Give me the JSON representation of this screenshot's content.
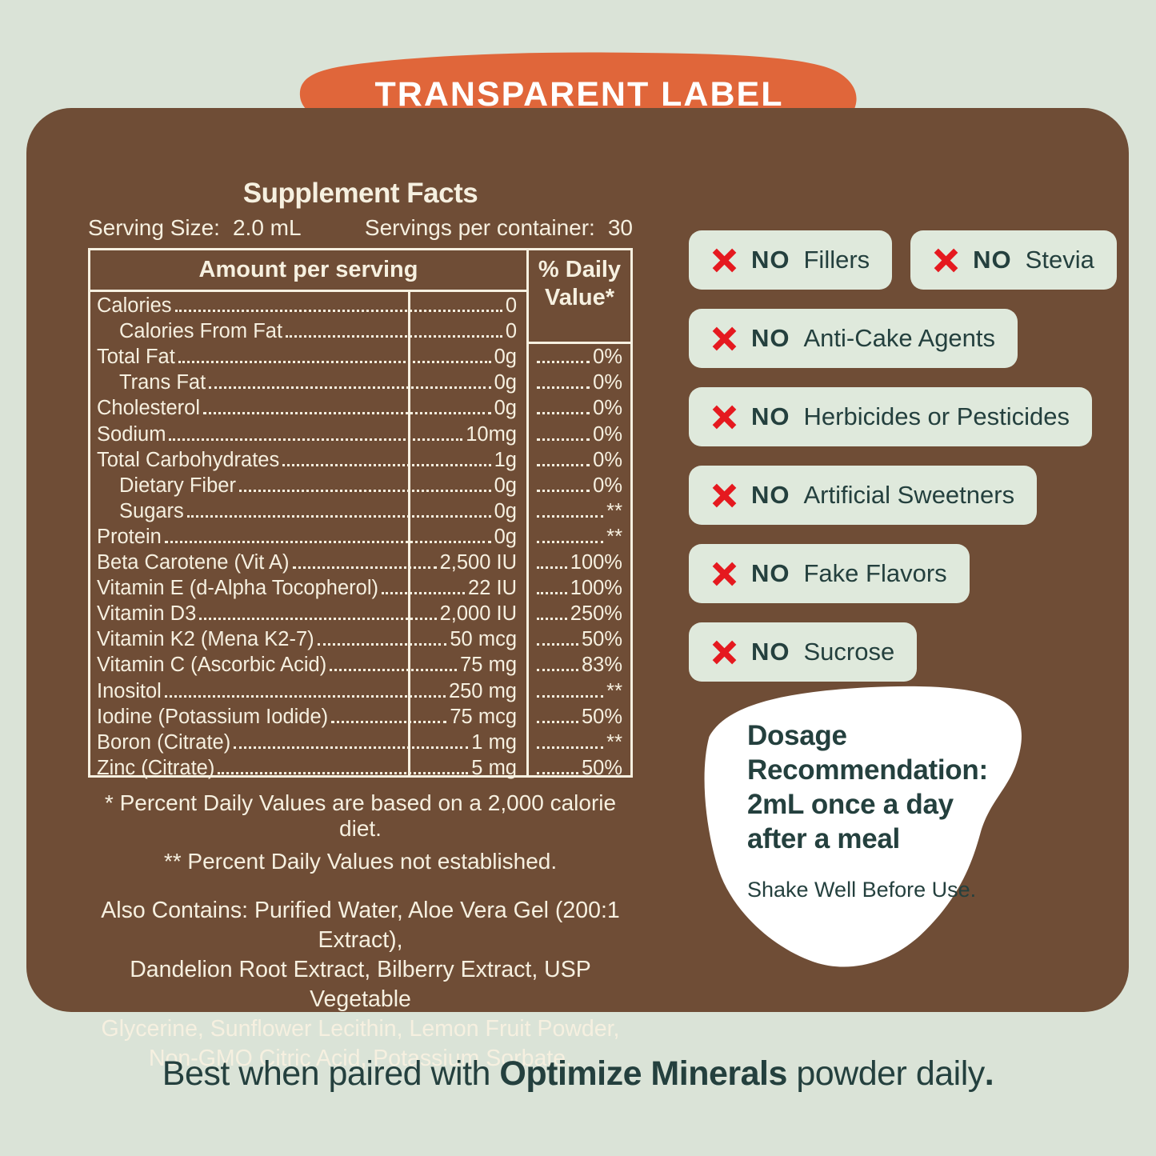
{
  "colors": {
    "background_sage": "#dae3d7",
    "card_brown": "#6f4d36",
    "banner_orange": "#e0663a",
    "badge_background": "#dfe9dc",
    "text_teal": "#24403e",
    "x_red": "#e5191f",
    "label_cream": "#f6f0e0"
  },
  "banner": {
    "label": "TRANSPARENT LABEL"
  },
  "supplement_facts": {
    "title": "Supplement Facts",
    "serving_size_label": "Serving Size:",
    "serving_size_value": "2.0 mL",
    "servings_label": "Servings per container:",
    "servings_value": "30",
    "table": {
      "amount_header": "Amount per serving",
      "dv_header_line1": "% Daily",
      "dv_header_line2": "Value*",
      "rows": [
        {
          "label": "Calories",
          "amount": "0",
          "dv": "",
          "indent": false
        },
        {
          "label": "Calories From Fat",
          "amount": "0",
          "dv": "",
          "indent": true
        },
        {
          "label": "Total Fat",
          "amount": "0g",
          "dv": "0%",
          "indent": false
        },
        {
          "label": "Trans Fat",
          "amount": "0g",
          "dv": "0%",
          "indent": true
        },
        {
          "label": "Cholesterol",
          "amount": "0g",
          "dv": "0%",
          "indent": false
        },
        {
          "label": "Sodium",
          "amount": "10mg",
          "dv": "0%",
          "indent": false
        },
        {
          "label": "Total Carbohydrates",
          "amount": "1g",
          "dv": "0%",
          "indent": false
        },
        {
          "label": "Dietary Fiber",
          "amount": "0g",
          "dv": "0%",
          "indent": true
        },
        {
          "label": "Sugars",
          "amount": "0g",
          "dv": "**",
          "indent": true
        },
        {
          "label": "Protein",
          "amount": "0g",
          "dv": "**",
          "indent": false
        },
        {
          "label": "Beta Carotene (Vit A)",
          "amount": "2,500 IU",
          "dv": "100%",
          "indent": false
        },
        {
          "label": "Vitamin E (d-Alpha Tocopherol)",
          "amount": "22 IU",
          "dv": "100%",
          "indent": false
        },
        {
          "label": "Vitamin D3",
          "amount": "2,000 IU",
          "dv": "250%",
          "indent": false
        },
        {
          "label": "Vitamin K2 (Mena K2-7)",
          "amount": "50 mcg",
          "dv": "50%",
          "indent": false
        },
        {
          "label": "Vitamin C (Ascorbic Acid)",
          "amount": "75 mg",
          "dv": "83%",
          "indent": false
        },
        {
          "label": "Inositol",
          "amount": "250 mg",
          "dv": "**",
          "indent": false
        },
        {
          "label": "Iodine (Potassium Iodide)",
          "amount": "75 mcg",
          "dv": "50%",
          "indent": false
        },
        {
          "label": "Boron (Citrate)",
          "amount": "1 mg",
          "dv": "**",
          "indent": false
        },
        {
          "label": "Zinc (Citrate)",
          "amount": "5 mg",
          "dv": "50%",
          "indent": false
        }
      ]
    },
    "footnote1": "* Percent Daily Values are based on a 2,000 calorie diet.",
    "footnote2": "** Percent Daily Values not established.",
    "also_contains_lines": [
      "Also Contains: Purified Water, Aloe Vera Gel (200:1 Extract),",
      "Dandelion Root Extract, Bilberry Extract, USP Vegetable",
      "Glycerine, Sunflower Lecithin, Lemon Fruit Powder,",
      "Non-GMO Citric Acid, Potassium Sorbate."
    ]
  },
  "badges": [
    {
      "no": "NO",
      "label": "Fillers"
    },
    {
      "no": "NO",
      "label": "Stevia"
    },
    {
      "no": "NO",
      "label": "Anti-Cake Agents"
    },
    {
      "no": "NO",
      "label": "Herbicides or Pesticides"
    },
    {
      "no": "NO",
      "label": "Artificial Sweetners"
    },
    {
      "no": "NO",
      "label": "Fake Flavors"
    },
    {
      "no": "NO",
      "label": "Sucrose"
    }
  ],
  "dosage": {
    "title_lines": [
      "Dosage",
      "Recommendation:",
      "2mL once a day",
      "after a meal"
    ],
    "note": "Shake Well Before Use."
  },
  "tagline": {
    "prefix": "Best when paired with ",
    "bold": "Optimize Minerals",
    "suffix": " powder daily",
    "period": "."
  }
}
